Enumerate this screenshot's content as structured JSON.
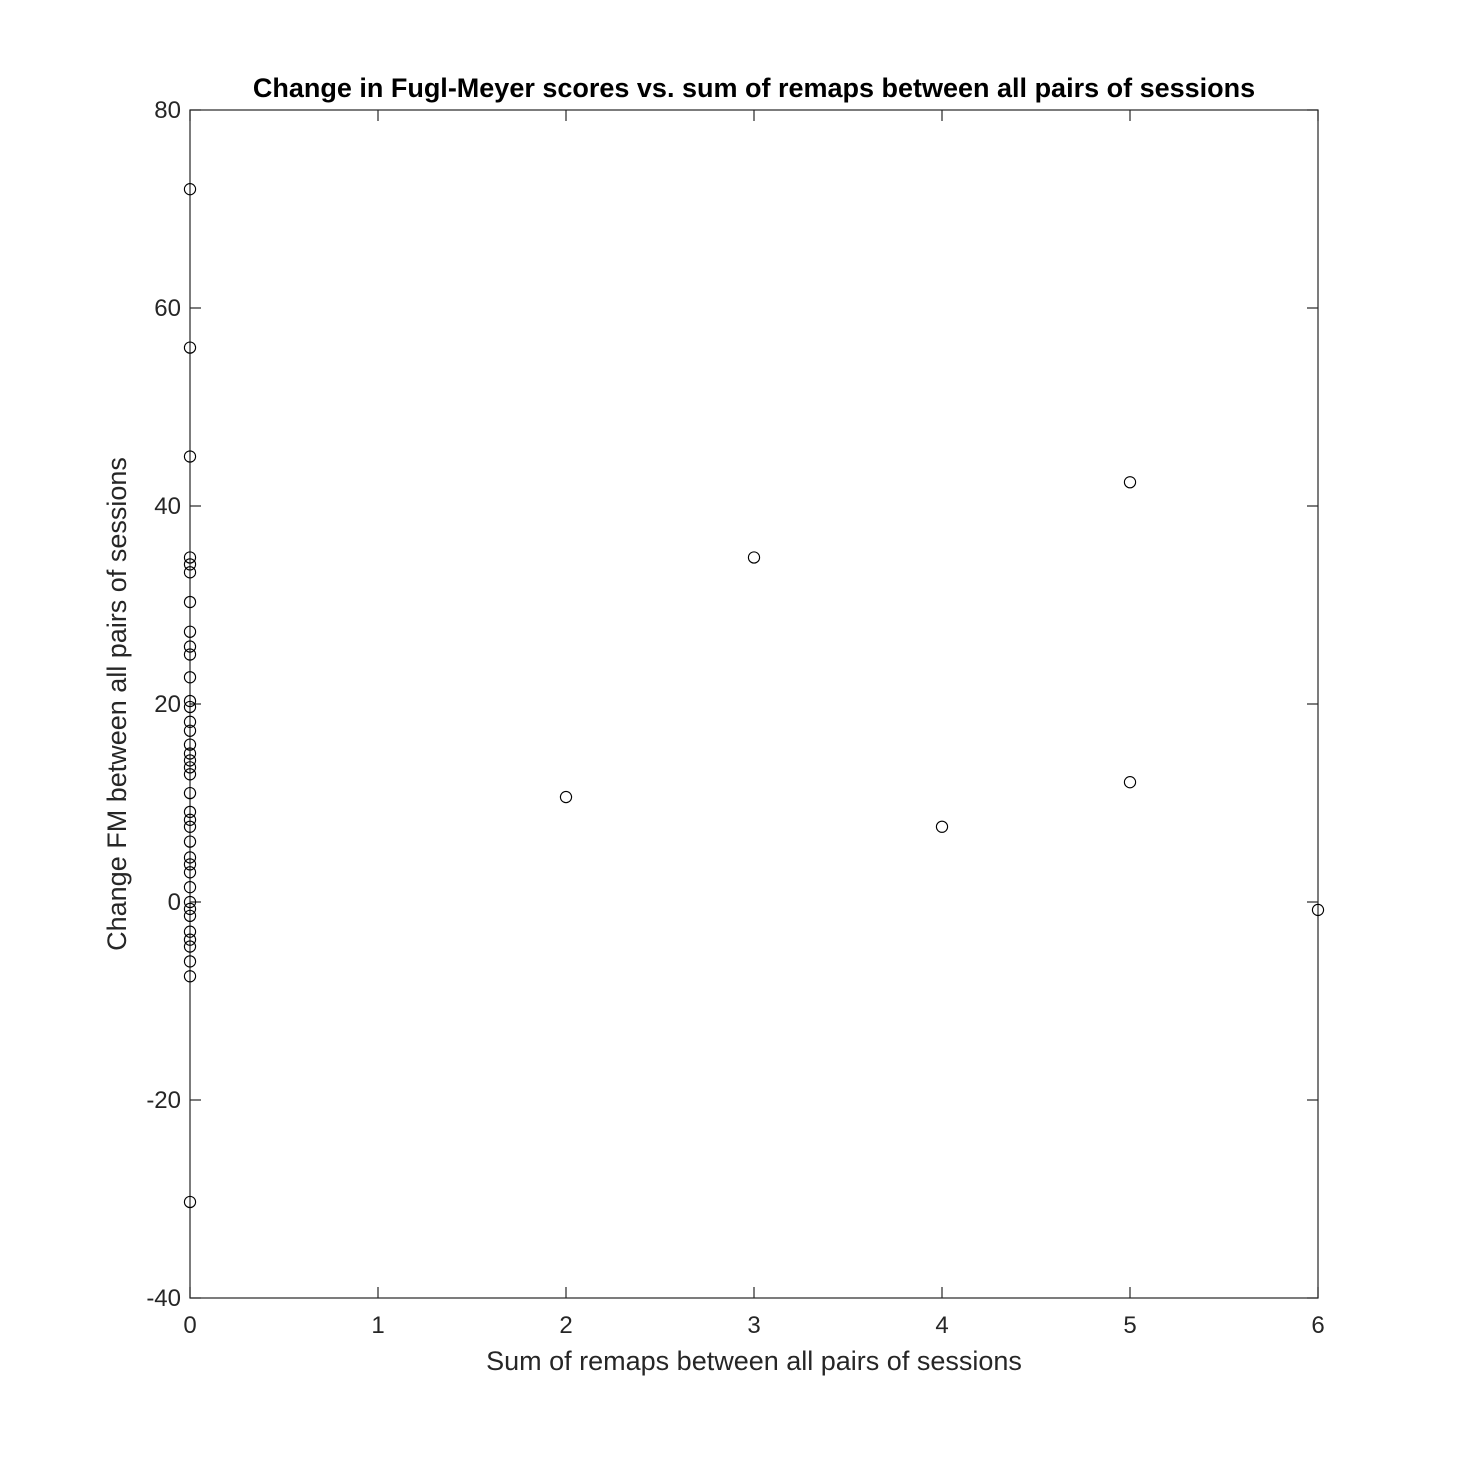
{
  "chart_data": {
    "type": "scatter",
    "title": "Change in Fugl-Meyer scores vs. sum of remaps between all pairs of sessions",
    "xlabel": "Sum of remaps between all pairs of sessions",
    "ylabel": "Change FM between all pairs of sessions",
    "xlim": [
      0,
      6
    ],
    "ylim": [
      -40,
      80
    ],
    "xticks": [
      "0",
      "1",
      "2",
      "3",
      "4",
      "5",
      "6"
    ],
    "yticks": [
      "-40",
      "-20",
      "0",
      "20",
      "40",
      "60",
      "80"
    ],
    "grid": false,
    "marker": "open-circle",
    "marker_color": "#000000",
    "series": [
      {
        "points": [
          [
            0,
            72
          ],
          [
            0,
            56
          ],
          [
            0,
            45
          ],
          [
            0,
            34.8
          ],
          [
            0,
            34.1
          ],
          [
            0,
            33.3
          ],
          [
            0,
            30.3
          ],
          [
            0,
            27.3
          ],
          [
            0,
            25.8
          ],
          [
            0,
            25
          ],
          [
            0,
            22.7
          ],
          [
            0,
            20.3
          ],
          [
            0,
            19.7
          ],
          [
            0,
            18.2
          ],
          [
            0,
            17.3
          ],
          [
            0,
            15.9
          ],
          [
            0,
            15
          ],
          [
            0,
            14.3
          ],
          [
            0,
            13.6
          ],
          [
            0,
            12.9
          ],
          [
            0,
            11
          ],
          [
            0,
            9.1
          ],
          [
            0,
            8.3
          ],
          [
            0,
            7.6
          ],
          [
            0,
            6.1
          ],
          [
            0,
            4.5
          ],
          [
            0,
            3.8
          ],
          [
            0,
            3
          ],
          [
            0,
            1.5
          ],
          [
            0,
            0
          ],
          [
            0,
            -0.7
          ],
          [
            0,
            -1.4
          ],
          [
            0,
            -3
          ],
          [
            0,
            -3.8
          ],
          [
            0,
            -4.5
          ],
          [
            0,
            -6
          ],
          [
            0,
            -7.5
          ],
          [
            0,
            -30.3
          ],
          [
            2,
            10.6
          ],
          [
            3,
            34.8
          ],
          [
            4,
            7.6
          ],
          [
            5,
            42.4
          ],
          [
            5,
            12.1
          ],
          [
            6,
            -0.8
          ]
        ]
      }
    ]
  }
}
